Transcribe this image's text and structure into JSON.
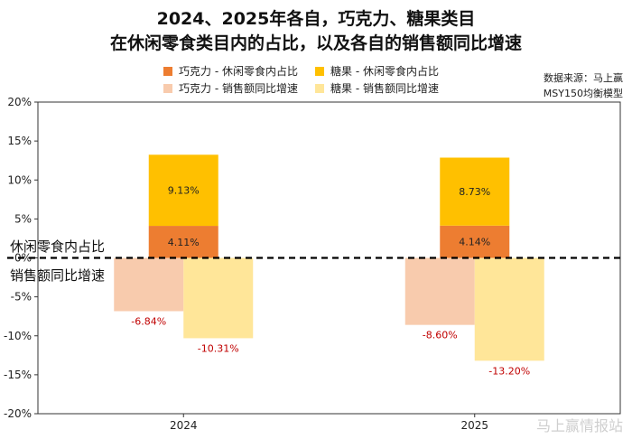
{
  "title_line1": "2024、2025年各自，巧克力、糖果类目",
  "title_line2": "在休闲零食类目内的占比，以及各自的销售额同比增速",
  "source_line1": "数据来源：马上赢",
  "source_line2": "MSY150均衡模型",
  "annotation_share": "休闲零食内占比",
  "annotation_growth": "销售额同比增速",
  "watermark": "马上赢情报站",
  "legend": [
    {
      "label": "巧克力 - 休闲零食内占比",
      "color": "#ED7D31"
    },
    {
      "label": "糖果 - 休闲零食内占比",
      "color": "#FFC000"
    },
    {
      "label": "巧克力 - 销售额同比增速",
      "color": "#F8CBAD"
    },
    {
      "label": "糖果 - 销售额同比增速",
      "color": "#FFE699"
    }
  ],
  "chart_data": {
    "type": "bar",
    "categories": [
      "2024",
      "2025"
    ],
    "ylim": [
      -20,
      20
    ],
    "yticks": [
      "20%",
      "15%",
      "10%",
      "5%",
      "0%",
      "-5%",
      "-10%",
      "-15%",
      "-20%"
    ],
    "series": [
      {
        "name": "巧克力 - 休闲零食内占比",
        "values": [
          4.11,
          4.14
        ],
        "labels": [
          "4.11%",
          "4.14%"
        ],
        "color": "#ED7D31"
      },
      {
        "name": "糖果 - 休闲零食内占比",
        "values": [
          9.13,
          8.73
        ],
        "labels": [
          "9.13%",
          "8.73%"
        ],
        "color": "#FFC000"
      },
      {
        "name": "巧克力 - 销售额同比增速",
        "values": [
          -6.84,
          -8.6
        ],
        "labels": [
          "-6.84%",
          "-8.60%"
        ],
        "color": "#F8CBAD"
      },
      {
        "name": "糖果 - 销售额同比增速",
        "values": [
          -10.31,
          -13.2
        ],
        "labels": [
          "-10.31%",
          "-13.20%"
        ],
        "color": "#FFE699"
      }
    ],
    "zero_line": "dashed",
    "grid": false
  }
}
